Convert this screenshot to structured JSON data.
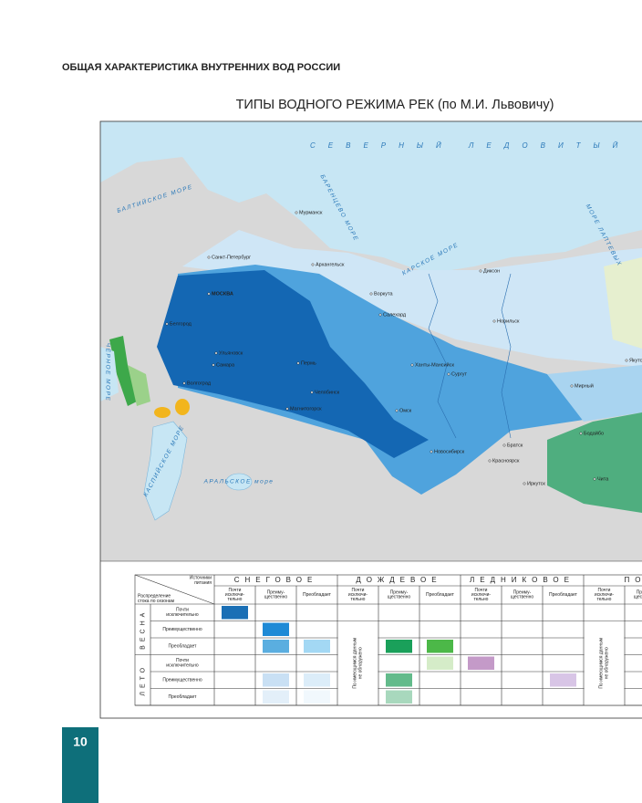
{
  "header": {
    "section_title": "ОБЩАЯ ХАРАКТЕРИСТИКА ВНУТРЕННИХ ВОД РОССИИ",
    "page_number": "10"
  },
  "figure": {
    "title": "ТИПЫ ВОДНОГО РЕЖИМА РЕК (по М.И. Львовичу)"
  },
  "map": {
    "ocean": "СЕВЕРНЫЙ ЛЕДОВИТЫЙ О",
    "seas": [
      "БАРЕНЦЕВО МОРЕ",
      "КАРСКОЕ МОРЕ",
      "МОРЕ ЛАПТЕВЫХ",
      "БАЛТИЙСКОЕ МОРЕ",
      "КАСПИЙСКОЕ МОРЕ",
      "АРАЛЬСКОЕ море",
      "ЧЁРНОЕ МОРЕ"
    ],
    "cities": [
      "Мурманск",
      "Архангельск",
      "Санкт-Петербург",
      "МОСКВА",
      "Воркута",
      "Салехард",
      "Диксон",
      "Норильск",
      "Ханты-Мансийск",
      "Сургут",
      "Пермь",
      "Ульяновск",
      "Самара",
      "Волгоград",
      "Челябинск",
      "Магнитогорск",
      "Омск",
      "Новосибирск",
      "Красноярск",
      "Братск",
      "Иркутск",
      "Мирный",
      "Якутск",
      "Бодайбо",
      "Чита",
      "Белгород"
    ]
  },
  "legend": {
    "corner_top": [
      "Источники",
      "питания"
    ],
    "corner_bottom": [
      "Распределение",
      "стока по сезонам"
    ],
    "sources": [
      "СНЕГОВОЕ",
      "ДОЖДЕВОЕ",
      "ЛЕДНИКОВОЕ",
      "ПОДЗ"
    ],
    "degrees": [
      [
        "Почти",
        "исключи-",
        "тельно"
      ],
      [
        "Преиму-",
        "щественно"
      ],
      [
        "Преобладает"
      ]
    ],
    "seasons": [
      "ВЕСНА",
      "ЛЕТО"
    ],
    "row_labels": [
      [
        "Почти",
        "исключительно"
      ],
      [
        "Преимущественно"
      ],
      [
        "Преобладает"
      ]
    ],
    "not_found": [
      "По имеющимся данным",
      "не обнаружено"
    ]
  }
}
